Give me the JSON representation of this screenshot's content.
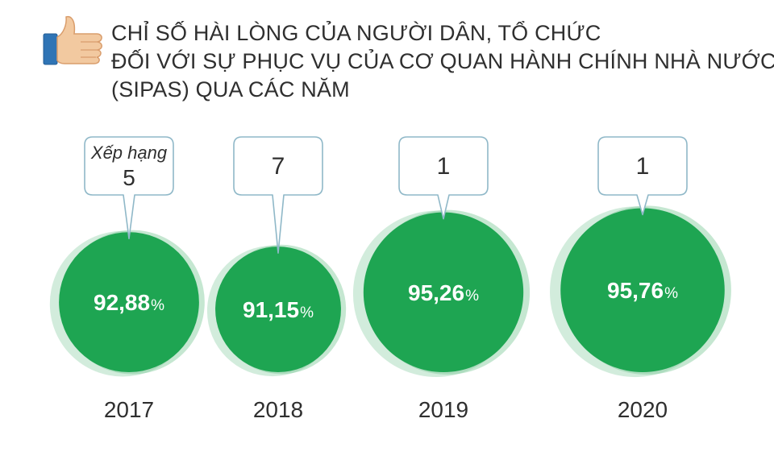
{
  "header": {
    "icon": "thumbs-up-icon",
    "title_lines": [
      "CHỈ SỐ HÀI LÒNG CỦA NGƯỜI DÂN, TỔ CHỨC",
      "ĐỐI VỚI SỰ PHỤC VỤ CỦA CƠ QUAN HÀNH CHÍNH NHÀ NƯỚC",
      "(SIPAS) QUA CÁC NĂM"
    ]
  },
  "chart_data": {
    "type": "bubble",
    "title": "CHỈ SỐ HÀI LÒNG CỦA NGƯỜI DÂN, TỔ CHỨC ĐỐI VỚI SỰ PHỤC VỤ CỦA CƠ QUAN HÀNH CHÍNH NHÀ NƯỚC (SIPAS) QUA CÁC NĂM",
    "categories": [
      "2017",
      "2018",
      "2019",
      "2020"
    ],
    "values": [
      92.88,
      91.15,
      95.26,
      95.76
    ],
    "value_labels": [
      "92,88",
      "91,15",
      "95,26",
      "95,76"
    ],
    "unit": "%",
    "rank_caption": "Xếp hạng",
    "ranks": [
      "5",
      "7",
      "1",
      "1"
    ],
    "colors": {
      "circle": "#1ea552",
      "halo": "#7fc99a",
      "callout_border": "#8fb8c8",
      "text": "#2f2f2f"
    }
  }
}
